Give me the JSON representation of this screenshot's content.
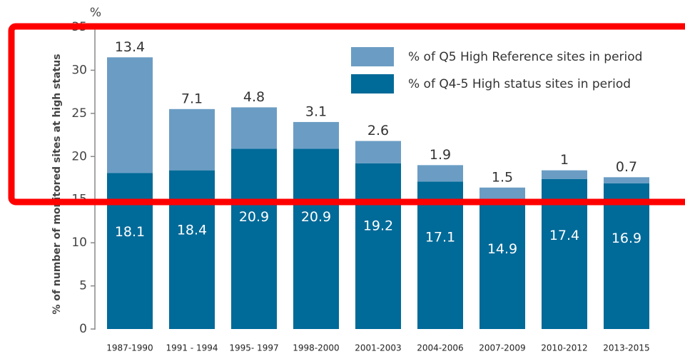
{
  "chart_data": {
    "type": "stacked_bar",
    "y_axis_label": "% of number of monitored sites at high status",
    "y_unit": "%",
    "categories": [
      "1987-1990",
      "1991 - 1994",
      "1995- 1997",
      "1998-2000",
      "2001-2003",
      "2004-2006",
      "2007-2009",
      "2010-2012",
      "2013-2015"
    ],
    "series": [
      {
        "name": "% of Q4-5 High status sites in period",
        "color": "#006a98",
        "values": [
          18.1,
          18.4,
          20.9,
          20.9,
          19.2,
          17.1,
          14.9,
          17.4,
          16.9
        ]
      },
      {
        "name": "% of Q5 High Reference sites in period",
        "color": "#6b9dc4",
        "values": [
          13.4,
          7.1,
          4.8,
          3.1,
          2.6,
          1.9,
          1.5,
          1.0,
          0.7
        ]
      }
    ],
    "ylim": [
      0,
      35
    ],
    "yticks": [
      0,
      5,
      10,
      15,
      20,
      25,
      30,
      35
    ]
  }
}
